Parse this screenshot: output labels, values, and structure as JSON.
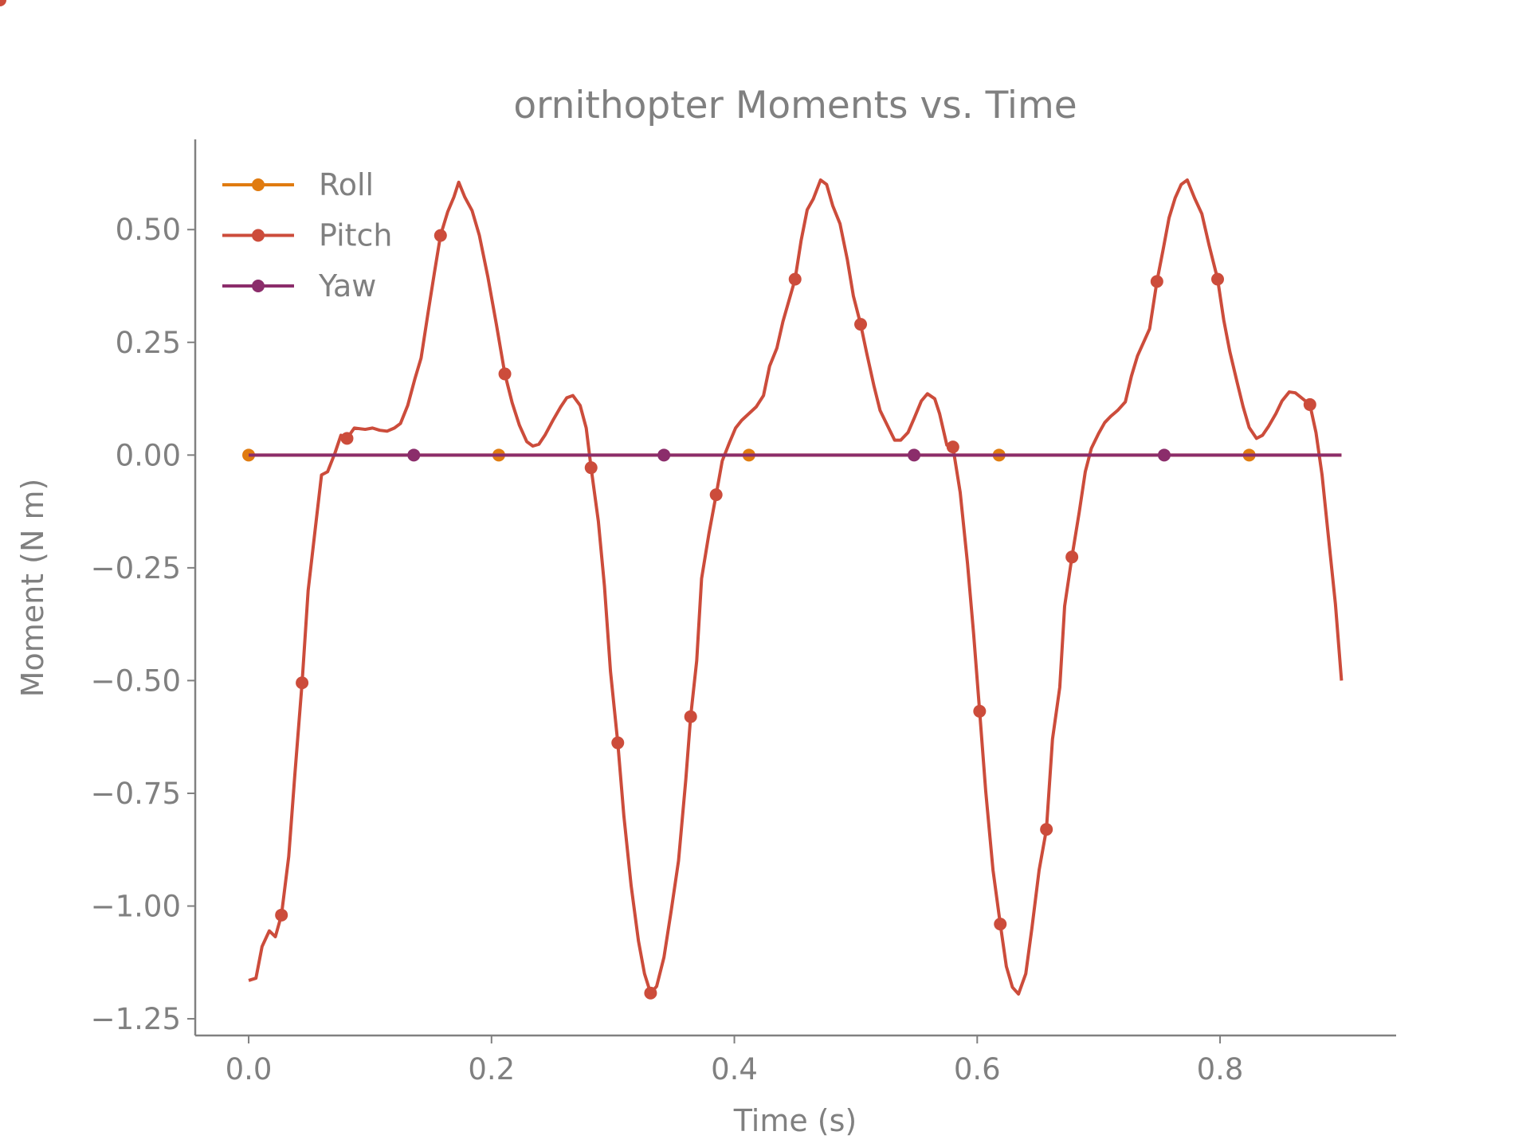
{
  "chart_data": {
    "type": "line",
    "title": "ornithopter Moments vs. Time",
    "xlabel": "Time (s)",
    "ylabel": "Moment (N m)",
    "xlim": [
      -0.044,
      0.945
    ],
    "ylim": [
      -1.287,
      0.7
    ],
    "xticks": [
      {
        "value": 0,
        "label": "0.0"
      },
      0.2,
      0.4,
      0.6,
      0.8
    ],
    "yticks": [
      {
        "value": -1.25,
        "label": "−1.25"
      },
      {
        "value": -1.0,
        "label": "−1.00"
      },
      {
        "value": -0.75,
        "label": "−0.75"
      },
      {
        "value": -0.5,
        "label": "−0.50"
      },
      {
        "value": -0.25,
        "label": "−0.25"
      },
      {
        "value": 0,
        "label": "0.00"
      },
      {
        "value": 0.25,
        "label": "0.25"
      },
      {
        "value": 0.5,
        "label": "0.50"
      }
    ],
    "legend": "upper left",
    "series": [
      {
        "name": "Roll",
        "color": "#e07b10",
        "x": [
          0,
          0.206,
          0.412,
          0.618,
          0.824,
          0.9
        ],
        "values": [
          0,
          0,
          0,
          0,
          0,
          0
        ],
        "markevery": [
          0,
          1,
          2,
          3,
          4
        ]
      },
      {
        "name": "Pitch",
        "color": "#cc4c3b",
        "x": [
          0,
          0.006,
          0.011,
          0.017,
          0.022,
          0.027,
          0.033,
          0.038,
          0.044,
          0.049,
          0.055,
          0.06,
          0.065,
          0.071,
          0.076,
          0.081,
          0.087,
          0.096,
          0.102,
          0.108,
          0.114,
          0.12,
          0.125,
          0.131,
          0.137,
          0.142,
          0.148,
          0.153,
          0.158,
          0.164,
          0.169,
          0.173,
          0.178,
          0.184,
          0.19,
          0.197,
          0.204,
          0.211,
          0.217,
          0.223,
          0.229,
          0.234,
          0.239,
          0.244,
          0.251,
          0.257,
          0.262,
          0.267,
          0.273,
          0.278,
          0.282,
          0.288,
          0.293,
          0.298,
          0.304,
          0.309,
          0.315,
          0.321,
          0.326,
          0.331,
          0.336,
          0.342,
          0.348,
          0.354,
          0.36,
          0.364,
          0.369,
          0.373,
          0.379,
          0.385,
          0.39,
          0.396,
          0.401,
          0.406,
          0.412,
          0.418,
          0.424,
          0.429,
          0.435,
          0.44,
          0.45,
          0.455,
          0.46,
          0.465,
          0.471,
          0.476,
          0.481,
          0.487,
          0.493,
          0.498,
          0.504,
          0.509,
          0.515,
          0.52,
          0.526,
          0.532,
          0.537,
          0.543,
          0.548,
          0.554,
          0.559,
          0.565,
          0.569,
          0.575,
          0.58,
          0.586,
          0.592,
          0.597,
          0.602,
          0.607,
          0.613,
          0.619,
          0.624,
          0.629,
          0.634,
          0.64,
          0.645,
          0.651,
          0.657,
          0.662,
          0.668,
          0.672,
          0.678,
          0.684,
          0.689,
          0.694,
          0.7,
          0.705,
          0.71,
          0.716,
          0.722,
          0.727,
          0.732,
          0.742,
          0.748,
          0.753,
          0.758,
          0.763,
          0.768,
          0.773,
          0.779,
          0.785,
          0.791,
          0.798,
          0.803,
          0.808,
          0.814,
          0.819,
          0.824,
          0.83,
          0.835,
          0.84,
          0.846,
          0.851,
          0.857,
          0.862,
          0.874,
          0.879,
          0.884,
          0.889,
          0.895,
          0.9
        ],
        "values": [
          -1.165,
          -1.16,
          -1.09,
          -1.055,
          -1.068,
          -1.02,
          -0.89,
          -0.71,
          -0.505,
          -0.3,
          -0.16,
          -0.044,
          -0.037,
          0.004,
          0.044,
          0.037,
          0.06,
          0.057,
          0.06,
          0.055,
          0.053,
          0.06,
          0.07,
          0.11,
          0.17,
          0.215,
          0.32,
          0.405,
          0.487,
          0.54,
          0.572,
          0.605,
          0.572,
          0.542,
          0.487,
          0.395,
          0.29,
          0.18,
          0.116,
          0.066,
          0.03,
          0.02,
          0.024,
          0.044,
          0.079,
          0.107,
          0.127,
          0.132,
          0.11,
          0.06,
          -0.028,
          -0.147,
          -0.29,
          -0.48,
          -0.638,
          -0.8,
          -0.955,
          -1.077,
          -1.15,
          -1.193,
          -1.178,
          -1.114,
          -1.01,
          -0.9,
          -0.72,
          -0.58,
          -0.456,
          -0.274,
          -0.175,
          -0.088,
          -0.013,
          0.028,
          0.06,
          0.077,
          0.092,
          0.107,
          0.132,
          0.197,
          0.237,
          0.296,
          0.39,
          0.476,
          0.544,
          0.568,
          0.61,
          0.6,
          0.553,
          0.513,
          0.434,
          0.353,
          0.29,
          0.226,
          0.153,
          0.099,
          0.066,
          0.033,
          0.033,
          0.05,
          0.081,
          0.12,
          0.136,
          0.125,
          0.092,
          0.022,
          0.018,
          -0.083,
          -0.24,
          -0.395,
          -0.568,
          -0.745,
          -0.92,
          -1.04,
          -1.134,
          -1.18,
          -1.195,
          -1.15,
          -1.05,
          -0.92,
          -0.83,
          -0.63,
          -0.515,
          -0.335,
          -0.226,
          -0.127,
          -0.037,
          0.015,
          0.048,
          0.072,
          0.086,
          0.1,
          0.118,
          0.175,
          0.22,
          0.28,
          0.385,
          0.454,
          0.526,
          0.57,
          0.6,
          0.61,
          0.57,
          0.535,
          0.465,
          0.39,
          0.3,
          0.23,
          0.162,
          0.107,
          0.061,
          0.037,
          0.044,
          0.064,
          0.092,
          0.12,
          0.14,
          0.138,
          0.112,
          0.05,
          -0.044,
          -0.175,
          -0.33,
          -0.5
        ],
        "markevery": [
          5,
          8,
          15,
          28,
          37,
          50,
          54,
          59,
          65,
          69,
          80,
          90,
          104,
          108,
          111,
          118,
          122,
          134,
          143,
          156,
          162
        ]
      },
      {
        "name": "Yaw",
        "color": "#8b2d6b",
        "x": [
          0,
          0.136,
          0.342,
          0.548,
          0.754,
          0.9
        ],
        "values": [
          0,
          0,
          0,
          0,
          0,
          0
        ],
        "markevery": [
          1,
          2,
          3,
          4
        ]
      }
    ]
  }
}
